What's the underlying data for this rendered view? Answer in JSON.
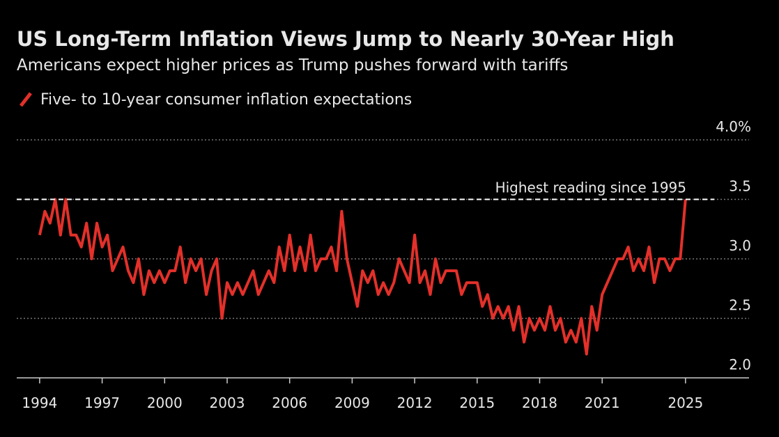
{
  "chart_data": {
    "type": "line",
    "title": "US Long-Term Inflation Views Jump to Nearly 30-Year High",
    "subtitle": "Americans expect higher prices as Trump pushes forward with tariffs",
    "x": [
      1994,
      1994.25,
      1994.5,
      1994.75,
      1995,
      1995.25,
      1995.5,
      1995.75,
      1996,
      1996.25,
      1996.5,
      1996.75,
      1997,
      1997.25,
      1997.5,
      1997.75,
      1998,
      1998.25,
      1998.5,
      1998.75,
      1999,
      1999.25,
      1999.5,
      1999.75,
      2000,
      2000.25,
      2000.5,
      2000.75,
      2001,
      2001.25,
      2001.5,
      2001.75,
      2002,
      2002.25,
      2002.5,
      2002.75,
      2003,
      2003.25,
      2003.5,
      2003.75,
      2004,
      2004.25,
      2004.5,
      2004.75,
      2005,
      2005.25,
      2005.5,
      2005.75,
      2006,
      2006.25,
      2006.5,
      2006.75,
      2007,
      2007.25,
      2007.5,
      2007.75,
      2008,
      2008.25,
      2008.5,
      2008.75,
      2009,
      2009.25,
      2009.5,
      2009.75,
      2010,
      2010.25,
      2010.5,
      2010.75,
      2011,
      2011.25,
      2011.5,
      2011.75,
      2012,
      2012.25,
      2012.5,
      2012.75,
      2013,
      2013.25,
      2013.5,
      2013.75,
      2014,
      2014.25,
      2014.5,
      2014.75,
      2015,
      2015.25,
      2015.5,
      2015.75,
      2016,
      2016.25,
      2016.5,
      2016.75,
      2017,
      2017.25,
      2017.5,
      2017.75,
      2018,
      2018.25,
      2018.5,
      2018.75,
      2019,
      2019.25,
      2019.5,
      2019.75,
      2020,
      2020.25,
      2020.5,
      2020.75,
      2021,
      2021.25,
      2021.5,
      2021.75,
      2022,
      2022.25,
      2022.5,
      2022.75,
      2023,
      2023.25,
      2023.5,
      2023.75,
      2024,
      2024.25,
      2024.5,
      2024.75,
      2025
    ],
    "series": [
      {
        "name": "Five- to 10-year consumer inflation expectations",
        "color": "#e3302a",
        "values": [
          3.2,
          3.4,
          3.3,
          3.5,
          3.2,
          3.5,
          3.2,
          3.2,
          3.1,
          3.3,
          3.0,
          3.3,
          3.1,
          3.2,
          2.9,
          3.0,
          3.1,
          2.9,
          2.8,
          3.0,
          2.7,
          2.9,
          2.8,
          2.9,
          2.8,
          2.9,
          2.9,
          3.1,
          2.8,
          3.0,
          2.9,
          3.0,
          2.7,
          2.9,
          3.0,
          2.5,
          2.8,
          2.7,
          2.8,
          2.7,
          2.8,
          2.9,
          2.7,
          2.8,
          2.9,
          2.8,
          3.1,
          2.9,
          3.2,
          2.9,
          3.1,
          2.9,
          3.2,
          2.9,
          3.0,
          3.0,
          3.1,
          2.9,
          3.4,
          3.0,
          2.8,
          2.6,
          2.9,
          2.8,
          2.9,
          2.7,
          2.8,
          2.7,
          2.8,
          3.0,
          2.9,
          2.8,
          3.2,
          2.8,
          2.9,
          2.7,
          3.0,
          2.8,
          2.9,
          2.9,
          2.9,
          2.7,
          2.8,
          2.8,
          2.8,
          2.6,
          2.7,
          2.5,
          2.6,
          2.5,
          2.6,
          2.4,
          2.6,
          2.3,
          2.5,
          2.4,
          2.5,
          2.4,
          2.6,
          2.4,
          2.5,
          2.3,
          2.4,
          2.3,
          2.5,
          2.2,
          2.6,
          2.4,
          2.7,
          2.8,
          2.9,
          3.0,
          3.0,
          3.1,
          2.9,
          3.0,
          2.9,
          3.1,
          2.8,
          3.0,
          3.0,
          2.9,
          3.0,
          3.0,
          3.5
        ]
      }
    ],
    "xlim": [
      1992.9,
      2028.05
    ],
    "xticks": [
      1994,
      1997,
      2000,
      2003,
      2006,
      2009,
      2012,
      2015,
      2018,
      2021,
      2025
    ],
    "ylim": [
      2.0,
      4.0
    ],
    "yticks": [
      {
        "value": 4.0,
        "label": "4.0%"
      },
      3.5,
      {
        "value": 3.0,
        "label": "3.0"
      },
      2.5,
      {
        "value": 2.0,
        "label": "2.0"
      }
    ],
    "grid": true,
    "annotation": {
      "text": "Highest reading since 1995",
      "value": 3.5
    }
  }
}
